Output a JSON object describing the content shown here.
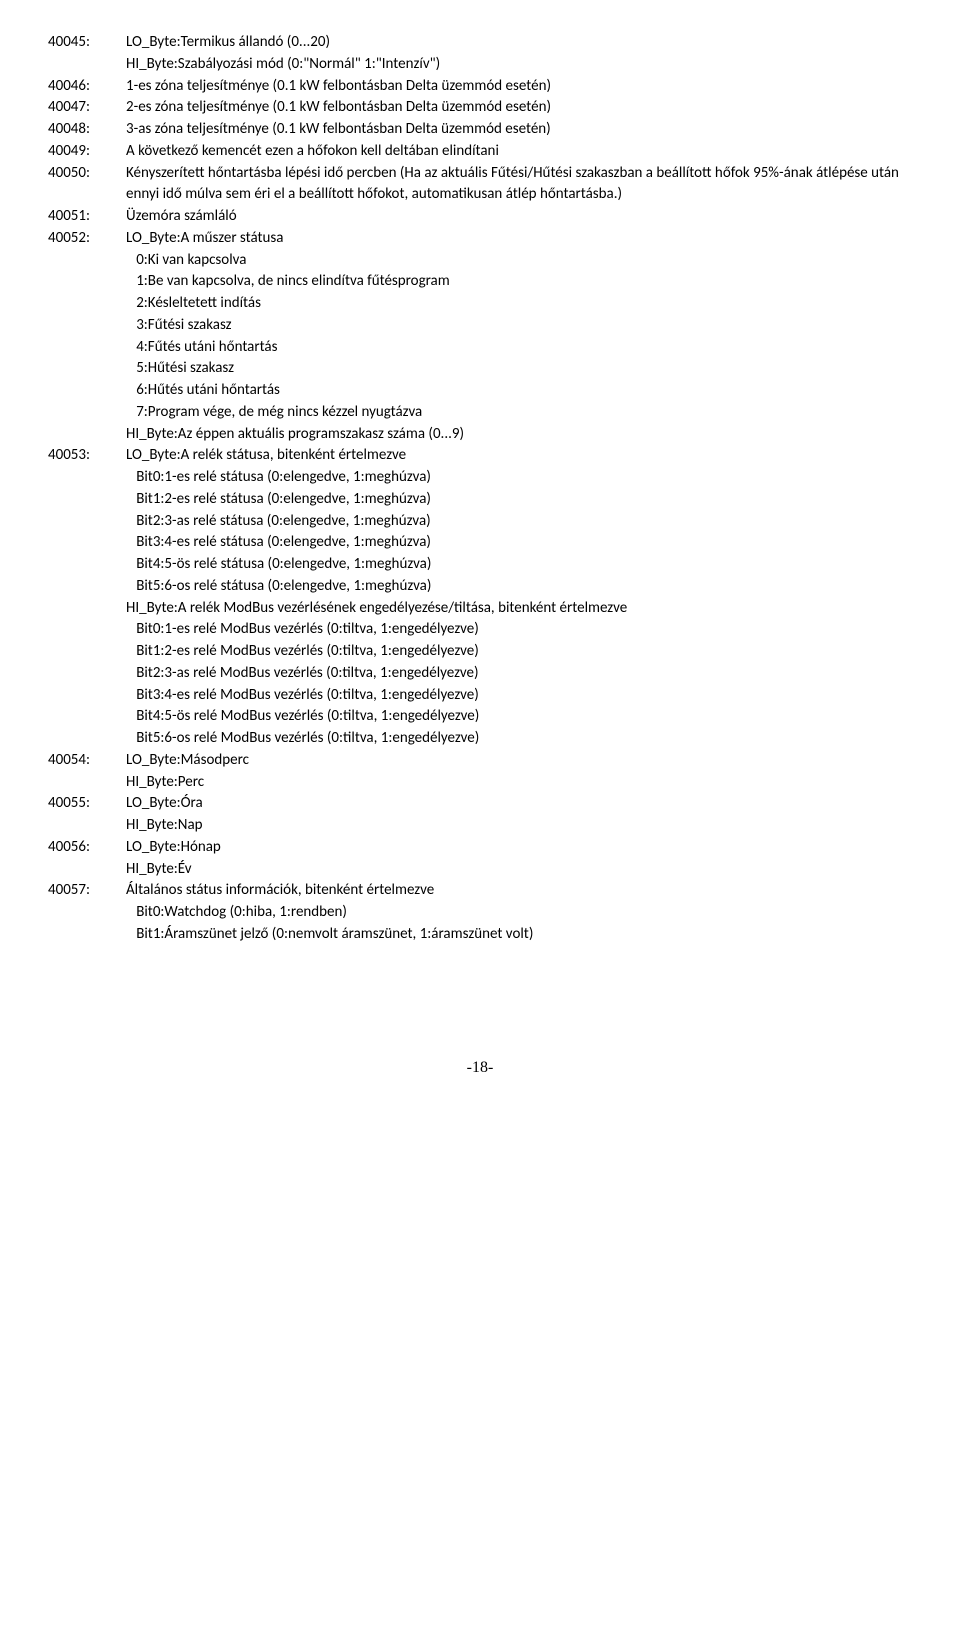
{
  "entries": [
    {
      "addr": "40045:",
      "lines": [
        "LO_Byte:Termikus állandó (0...20)",
        "HI_Byte:Szabályozási mód (0:\"Normál\" 1:\"Intenzív\")"
      ]
    },
    {
      "addr": "40046:",
      "lines": [
        "1-es zóna teljesítménye (0.1 kW felbontásban Delta üzemmód esetén)"
      ]
    },
    {
      "addr": "40047:",
      "lines": [
        "2-es zóna teljesítménye (0.1 kW felbontásban Delta üzemmód esetén)"
      ]
    },
    {
      "addr": "40048:",
      "lines": [
        "3-as zóna teljesítménye (0.1 kW felbontásban Delta üzemmód esetén)"
      ]
    },
    {
      "addr": "40049:",
      "lines": [
        "A következő kemencét ezen a hőfokon kell deltában elindítani"
      ]
    },
    {
      "addr": "40050:",
      "lines": [
        "Kényszerített hőntartásba lépési idő percben (Ha az aktuális Fűtési/Hűtési szakaszban a beállított hőfok 95%-ának átlépése után ennyi idő múlva sem éri el a beállított hőfokot, automatikusan átlép hőntartásba.)"
      ]
    },
    {
      "addr": "40051:",
      "lines": [
        "Üzemóra számláló"
      ]
    },
    {
      "addr": "40052:",
      "lines": [
        "LO_Byte:A műszer státusa",
        "   0:Ki van kapcsolva",
        "   1:Be van kapcsolva, de nincs elindítva fűtésprogram",
        "   2:Késleltetett indítás",
        "   3:Fűtési szakasz",
        "   4:Fűtés utáni hőntartás",
        "   5:Hűtési szakasz",
        "   6:Hűtés utáni hőntartás",
        "   7:Program vége, de még nincs kézzel nyugtázva",
        "HI_Byte:Az éppen aktuális programszakasz száma (0...9)"
      ]
    },
    {
      "addr": "40053:",
      "lines": [
        "LO_Byte:A relék státusa, bitenként értelmezve",
        "   Bit0:1-es relé státusa (0:elengedve, 1:meghúzva)",
        "   Bit1:2-es relé státusa (0:elengedve, 1:meghúzva)",
        "   Bit2:3-as relé státusa (0:elengedve, 1:meghúzva)",
        "   Bit3:4-es relé státusa (0:elengedve, 1:meghúzva)",
        "   Bit4:5-ös relé státusa (0:elengedve, 1:meghúzva)",
        "   Bit5:6-os relé státusa (0:elengedve, 1:meghúzva)",
        "HI_Byte:A relék ModBus vezérlésének engedélyezése/tiltása, bitenként értelmezve",
        "   Bit0:1-es relé ModBus vezérlés (0:tiltva, 1:engedélyezve)",
        "   Bit1:2-es relé ModBus vezérlés (0:tiltva, 1:engedélyezve)",
        "   Bit2:3-as relé ModBus vezérlés (0:tiltva, 1:engedélyezve)",
        "   Bit3:4-es relé ModBus vezérlés (0:tiltva, 1:engedélyezve)",
        "   Bit4:5-ös relé ModBus vezérlés (0:tiltva, 1:engedélyezve)",
        "   Bit5:6-os relé ModBus vezérlés (0:tiltva, 1:engedélyezve)"
      ]
    },
    {
      "addr": "40054:",
      "lines": [
        "LO_Byte:Másodperc",
        "HI_Byte:Perc"
      ]
    },
    {
      "addr": "40055:",
      "lines": [
        "LO_Byte:Óra",
        "HI_Byte:Nap"
      ]
    },
    {
      "addr": "40056:",
      "lines": [
        "LO_Byte:Hónap",
        "HI_Byte:Év"
      ]
    },
    {
      "addr": "40057:",
      "lines": [
        "Általános státus információk, bitenként értelmezve",
        "   Bit0:Watchdog (0:hiba, 1:rendben)",
        "   Bit1:Áramszünet jelző (0:nemvolt áramszünet, 1:áramszünet volt)"
      ]
    }
  ],
  "pageNumber": "-18-"
}
